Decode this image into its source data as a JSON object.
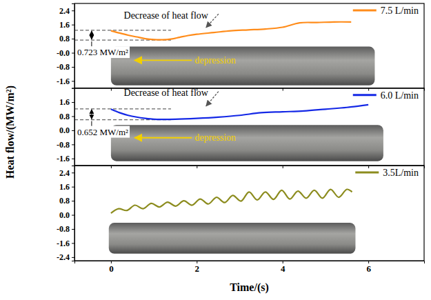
{
  "chart_data": [
    {
      "type": "line",
      "xlim": [
        -0.85,
        7.3
      ],
      "xticks": [
        0,
        2,
        4,
        6
      ],
      "ylim": [
        -2.0,
        2.8
      ],
      "yticks": [
        2.4,
        1.6,
        0.8,
        {
          "value": 0,
          "label": "-0.0"
        },
        -0.8,
        -1.6
      ],
      "tick_labels": "y",
      "series": [
        {
          "name": "7.5 L/min",
          "color": "#ff8c1a",
          "x": [
            0,
            0.2,
            0.4,
            0.6,
            0.8,
            1.0,
            1.2,
            1.4,
            1.6,
            1.8,
            2.0,
            2.4,
            2.8,
            3.2,
            3.6,
            4.0,
            4.4,
            4.8,
            5.2,
            5.6
          ],
          "values": [
            1.25,
            1.12,
            1.0,
            0.9,
            0.8,
            0.75,
            0.74,
            0.78,
            0.88,
            0.98,
            1.05,
            1.15,
            1.25,
            1.3,
            1.35,
            1.45,
            1.7,
            1.72,
            1.75,
            1.75
          ]
        }
      ],
      "dashed_lines": [
        1.28,
        0.72
      ],
      "annotations": [
        "Decrease of heat flow",
        "depression",
        "0.723 MW/m²"
      ]
    },
    {
      "type": "line",
      "xlim": [
        -0.85,
        7.3
      ],
      "xticks": [
        0,
        2,
        4,
        6
      ],
      "ylim": [
        -2.0,
        2.4
      ],
      "yticks": [
        1.6,
        0.8,
        {
          "value": 0,
          "label": "0.0"
        },
        -0.8,
        -1.6
      ],
      "tick_labels": "y",
      "y_label": "Heat flow/(MW/m²)",
      "series": [
        {
          "name": "6.0 L/min",
          "color": "#1428e6",
          "x": [
            0,
            0.2,
            0.4,
            0.6,
            0.8,
            1.0,
            1.2,
            1.5,
            2.0,
            2.5,
            3.0,
            3.5,
            4.0,
            4.5,
            5.0,
            5.5,
            6.0
          ],
          "values": [
            1.2,
            1.0,
            0.85,
            0.75,
            0.68,
            0.63,
            0.62,
            0.63,
            0.68,
            0.75,
            0.85,
            1.0,
            1.05,
            1.1,
            1.2,
            1.3,
            1.45
          ]
        }
      ],
      "dashed_lines": [
        1.22,
        0.6
      ],
      "annotations": [
        "Decrease of heat flow",
        "depression",
        "0.652 MW/m²"
      ]
    },
    {
      "type": "line",
      "xlim": [
        -0.85,
        7.3
      ],
      "xticks": [
        0,
        2,
        4,
        6
      ],
      "ylim": [
        -2.6,
        2.8
      ],
      "yticks": [
        2.4,
        1.6,
        0.8,
        {
          "value": 0,
          "label": "0.0"
        },
        -0.8,
        -1.6,
        -2.4
      ],
      "x_label": "Time/(s)",
      "series": [
        {
          "name": "3.5L/min",
          "color": "#8c8c1e",
          "x": [
            0,
            0.18,
            0.37,
            0.56,
            0.75,
            0.94,
            1.13,
            1.32,
            1.51,
            1.7,
            1.89,
            2.08,
            2.27,
            2.46,
            2.65,
            2.84,
            3.03,
            3.22,
            3.41,
            3.6,
            3.79,
            3.98,
            4.17,
            4.36,
            4.55,
            4.74,
            4.93,
            5.12,
            5.31,
            5.5,
            5.62
          ],
          "values": [
            0.1,
            0.35,
            0.25,
            0.55,
            0.35,
            0.65,
            0.45,
            0.72,
            0.5,
            0.8,
            0.55,
            0.9,
            0.62,
            1.0,
            0.7,
            1.1,
            0.78,
            1.3,
            0.85,
            1.3,
            0.88,
            1.4,
            0.9,
            1.35,
            0.95,
            1.4,
            0.95,
            1.45,
            1.0,
            1.45,
            1.3
          ]
        }
      ]
    }
  ]
}
